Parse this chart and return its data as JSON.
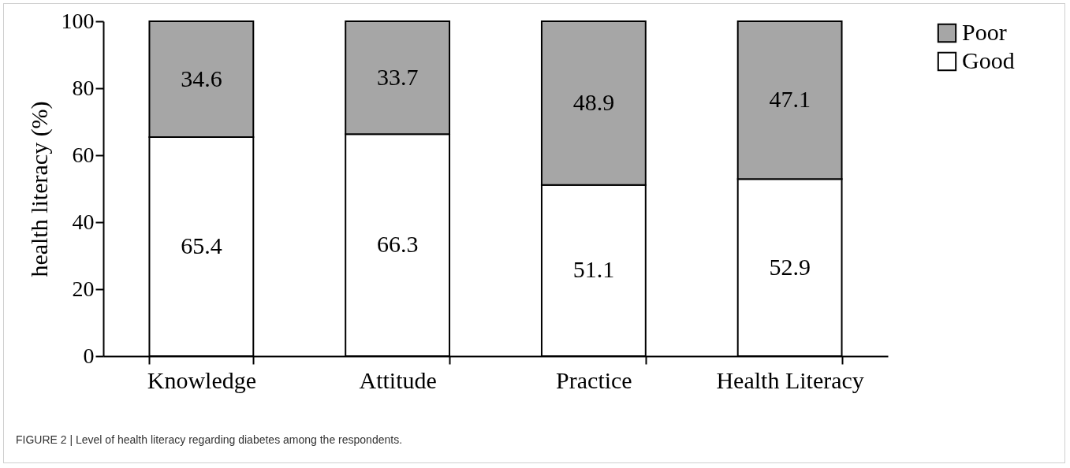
{
  "chart_data": {
    "type": "bar",
    "stacked": true,
    "ylabel": "health literacy (%)",
    "categories": [
      "Knowledge",
      "Attitude",
      "Practice",
      "Health Literacy"
    ],
    "series": [
      {
        "name": "Good",
        "color": "#ffffff",
        "values": [
          65.4,
          66.3,
          51.1,
          52.9
        ]
      },
      {
        "name": "Poor",
        "color": "#a6a6a6",
        "values": [
          34.6,
          33.7,
          48.9,
          47.1
        ]
      }
    ],
    "ylim": [
      0,
      100
    ],
    "yticks": [
      0,
      20,
      40,
      60,
      80,
      100
    ],
    "grid": false,
    "legend": "right",
    "data_labels": true,
    "annotations": [
      "FIGURE 2 | Level of health literacy regarding diabetes among the respondents."
    ]
  }
}
